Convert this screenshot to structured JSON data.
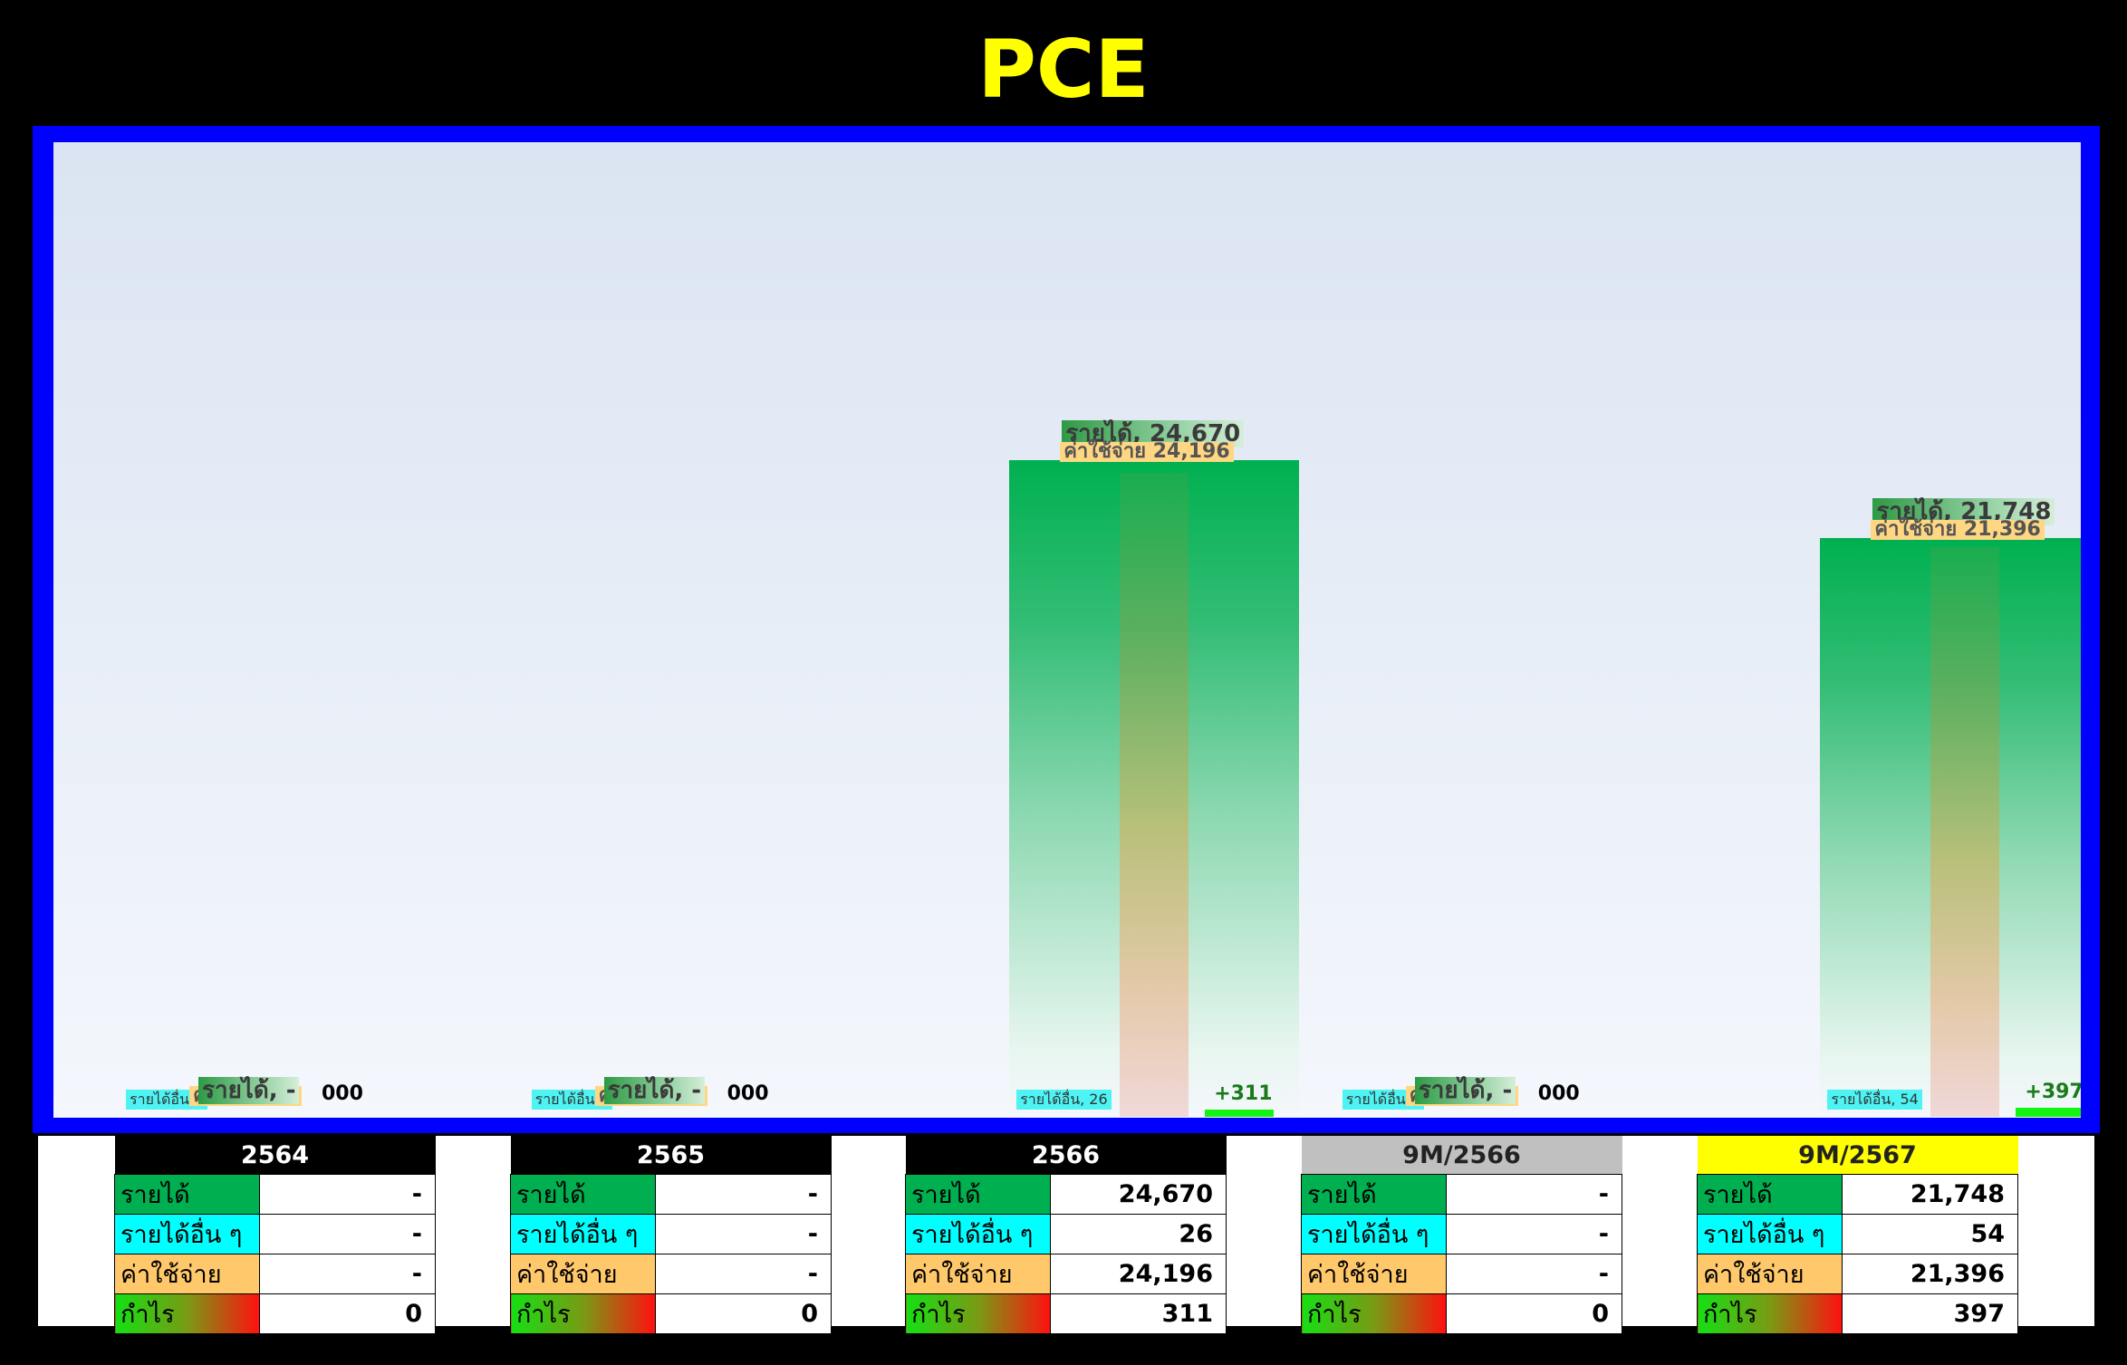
{
  "title": "PCE",
  "colors": {
    "revenue": "#00b050",
    "other_income": "#00ffff",
    "expense": "#ffc86b",
    "profit": "#13f413",
    "title": "#ffff00",
    "frame": "#0000ff"
  },
  "chart_data": {
    "type": "bar",
    "title": "PCE",
    "categories": [
      "2564",
      "2565",
      "2566",
      "9M/2566",
      "9M/2567"
    ],
    "ylim": [
      0,
      30000
    ],
    "series": [
      {
        "name": "รายได้",
        "values": [
          0,
          0,
          24670,
          0,
          21748
        ]
      },
      {
        "name": "รายได้อื่น",
        "values": [
          0,
          0,
          26,
          0,
          54
        ]
      },
      {
        "name": "ค่าใช้จ่าย",
        "values": [
          0,
          0,
          24196,
          0,
          21396
        ]
      },
      {
        "name": "กำไร",
        "values": [
          0,
          0,
          311,
          0,
          397
        ]
      }
    ],
    "point_labels": [
      {
        "rev": "รายได้, -",
        "exp": "ค่าใช้จ่าย, -",
        "oth": "รายได้อื่น, -",
        "profit": "000"
      },
      {
        "rev": "รายได้, -",
        "exp": "ค่าใช้จ่าย, -",
        "oth": "รายได้อื่น, -",
        "profit": "000"
      },
      {
        "rev": "รายได้, 24,670",
        "exp": "ค่าใช้จ่าย 24,196",
        "oth": "รายได้อื่น, 26",
        "profit": "+311"
      },
      {
        "rev": "รายได้, -",
        "exp": "ค่าใช้จ่าย, -",
        "oth": "รายได้อื่น, -",
        "profit": "000"
      },
      {
        "rev": "รายได้, 21,748",
        "exp": "ค่าใช้จ่าย 21,396",
        "oth": "รายได้อื่น, 54",
        "profit": "+397"
      }
    ]
  },
  "tables": [
    {
      "period": "2564",
      "header_bg": "#000000",
      "header_color": "#ffffff",
      "revenue": "-",
      "other_income": "-",
      "expense": "-",
      "profit": "0"
    },
    {
      "period": "2565",
      "header_bg": "#000000",
      "header_color": "#ffffff",
      "revenue": "-",
      "other_income": "-",
      "expense": "-",
      "profit": "0"
    },
    {
      "period": "2566",
      "header_bg": "#000000",
      "header_color": "#ffffff",
      "revenue": "24,670",
      "other_income": "26",
      "expense": "24,196",
      "profit": "311"
    },
    {
      "period": "9M/2566",
      "header_bg": "#c0c0c0",
      "header_color": "#222222",
      "revenue": "-",
      "other_income": "-",
      "expense": "-",
      "profit": "0"
    },
    {
      "period": "9M/2567",
      "header_bg": "#ffff00",
      "header_color": "#222222",
      "revenue": "21,748",
      "other_income": "54",
      "expense": "21,396",
      "profit": "397"
    }
  ],
  "row_labels": {
    "revenue": "รายได้",
    "other_income": "รายได้อื่น ๆ",
    "expense": "ค่าใช้จ่าย",
    "profit": "กำไร"
  }
}
